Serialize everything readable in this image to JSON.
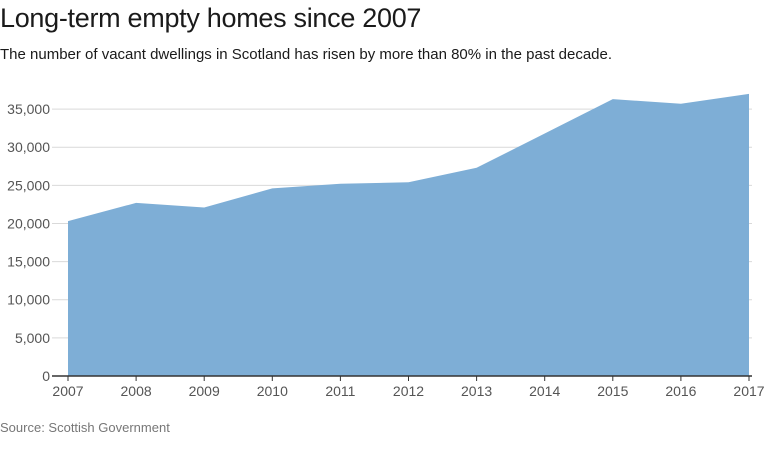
{
  "title": "Long-term empty homes since 2007",
  "subtitle": "The number of vacant dwellings in Scotland has risen by more than 80% in the past decade.",
  "source": "Source: Scottish Government",
  "colors": {
    "area_fill": "#7eaed6",
    "grid": "#d9d9d9",
    "axis": "#333333",
    "tick_text": "#555555"
  },
  "chart_data": {
    "type": "area",
    "title": "Long-term empty homes since 2007",
    "subtitle": "The number of vacant dwellings in Scotland has risen by more than 80% in the past decade.",
    "xlabel": "",
    "ylabel": "",
    "x": [
      2007,
      2008,
      2009,
      2010,
      2011,
      2012,
      2013,
      2014,
      2015,
      2016,
      2017
    ],
    "values": [
      20300,
      22700,
      22100,
      24600,
      25200,
      25400,
      27300,
      31800,
      36300,
      35700,
      37000
    ],
    "ylim": [
      0,
      37500
    ],
    "yticks": [
      0,
      5000,
      10000,
      15000,
      20000,
      25000,
      30000,
      35000
    ],
    "ytick_labels": [
      "0",
      "5,000",
      "10,000",
      "15,000",
      "20,000",
      "25,000",
      "30,000",
      "35,000"
    ],
    "xtick_labels": [
      "2007",
      "2008",
      "2009",
      "2010",
      "2011",
      "2012",
      "2013",
      "2014",
      "2015",
      "2016",
      "2017"
    ],
    "grid": true,
    "legend": "none"
  }
}
